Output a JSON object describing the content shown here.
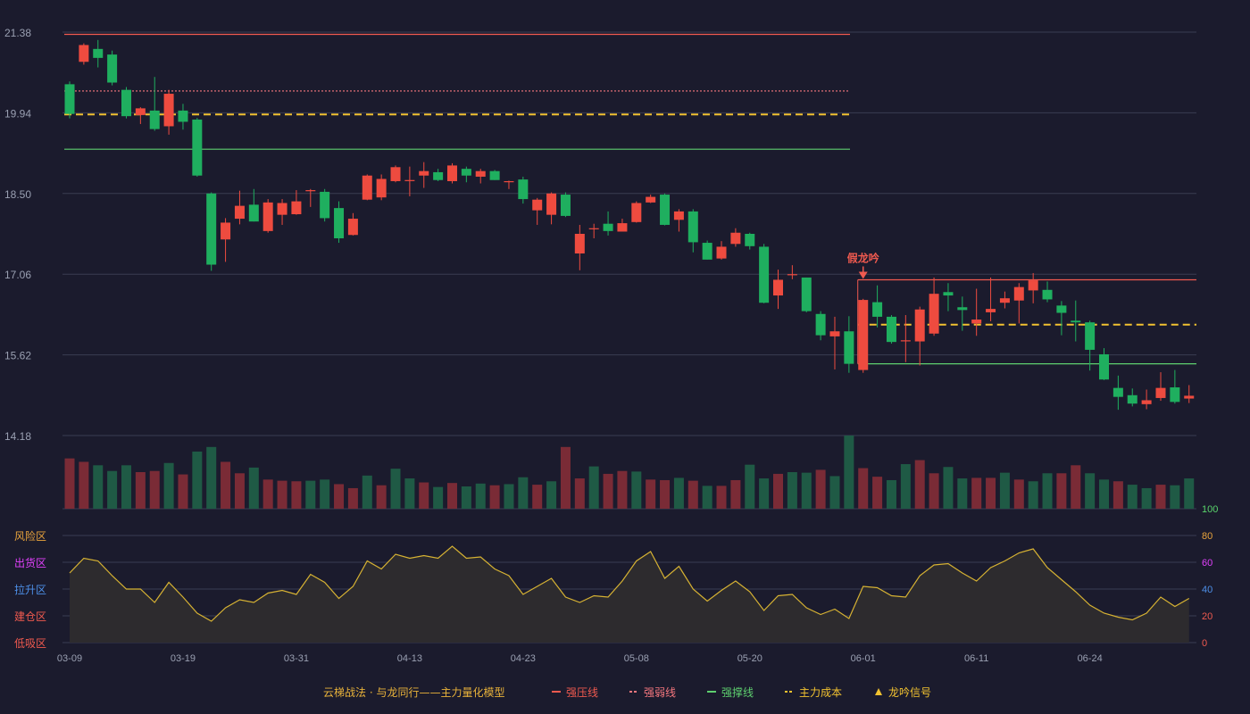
{
  "chart_data": {
    "type": "candlestick",
    "price_axis": {
      "ticks": [
        "21.38",
        "19.94",
        "18.50",
        "17.06",
        "15.62",
        "14.18"
      ],
      "ylim": [
        14.18,
        21.38
      ]
    },
    "indicator_axis": {
      "ticks": [
        "100",
        "80",
        "60",
        "40",
        "20",
        "0"
      ],
      "ylim": [
        0,
        100
      ]
    },
    "zones": [
      {
        "label": "风险区",
        "color": "#e8a33c"
      },
      {
        "label": "出货区",
        "color": "#e040fb"
      },
      {
        "label": "拉升区",
        "color": "#4d8fe8"
      },
      {
        "label": "建仓区",
        "color": "#f05a4f"
      },
      {
        "label": "低吸区",
        "color": "#f05a4f"
      }
    ],
    "x_ticks": [
      {
        "i": 0,
        "label": "03-09"
      },
      {
        "i": 8,
        "label": "03-19"
      },
      {
        "i": 16,
        "label": "03-31"
      },
      {
        "i": 24,
        "label": "04-13"
      },
      {
        "i": 32,
        "label": "04-23"
      },
      {
        "i": 40,
        "label": "05-08"
      },
      {
        "i": 48,
        "label": "05-20"
      },
      {
        "i": 56,
        "label": "06-01"
      },
      {
        "i": 64,
        "label": "06-11"
      },
      {
        "i": 72,
        "label": "06-24"
      }
    ],
    "ohlc": [
      [
        20.45,
        19.92,
        20.5,
        19.84
      ],
      [
        20.85,
        21.15,
        21.18,
        20.8
      ],
      [
        21.08,
        20.92,
        21.24,
        20.75
      ],
      [
        20.98,
        20.48,
        21.05,
        20.43
      ],
      [
        20.35,
        19.88,
        20.4,
        19.84
      ],
      [
        19.9,
        20.02,
        20.04,
        19.74
      ],
      [
        19.98,
        19.65,
        20.58,
        19.62
      ],
      [
        19.7,
        20.28,
        20.35,
        19.55
      ],
      [
        19.98,
        19.78,
        20.1,
        19.64
      ],
      [
        19.82,
        18.82,
        19.85,
        18.8
      ],
      [
        18.5,
        17.23,
        18.52,
        17.12
      ],
      [
        17.68,
        17.98,
        18.06,
        17.28
      ],
      [
        18.05,
        18.28,
        18.55,
        17.95
      ],
      [
        18.3,
        18.0,
        18.58,
        18.0
      ],
      [
        17.83,
        18.34,
        18.4,
        17.8
      ],
      [
        18.12,
        18.33,
        18.4,
        17.94
      ],
      [
        18.13,
        18.36,
        18.56,
        18.12
      ],
      [
        18.54,
        18.56,
        18.58,
        18.26
      ],
      [
        18.53,
        18.06,
        18.58,
        18.0
      ],
      [
        18.24,
        17.7,
        18.36,
        17.62
      ],
      [
        17.76,
        18.05,
        18.15,
        17.75
      ],
      [
        18.39,
        18.82,
        18.84,
        18.38
      ],
      [
        18.43,
        18.76,
        18.84,
        18.38
      ],
      [
        18.72,
        18.97,
        19.0,
        18.7
      ],
      [
        18.73,
        18.74,
        18.98,
        18.45
      ],
      [
        18.82,
        18.9,
        19.06,
        18.6
      ],
      [
        18.88,
        18.74,
        18.94,
        18.72
      ],
      [
        18.72,
        19.0,
        19.04,
        18.68
      ],
      [
        18.94,
        18.82,
        18.98,
        18.7
      ],
      [
        18.8,
        18.9,
        18.94,
        18.68
      ],
      [
        18.9,
        18.74,
        18.92,
        18.74
      ],
      [
        18.72,
        18.72,
        18.73,
        18.58
      ],
      [
        18.75,
        18.4,
        18.8,
        18.32
      ],
      [
        18.2,
        18.39,
        18.42,
        17.94
      ],
      [
        18.12,
        18.5,
        18.52,
        17.95
      ],
      [
        18.48,
        18.1,
        18.52,
        18.08
      ],
      [
        17.43,
        17.78,
        17.94,
        17.13
      ],
      [
        17.88,
        17.88,
        17.96,
        17.7
      ],
      [
        17.96,
        17.83,
        18.18,
        17.75
      ],
      [
        17.82,
        17.97,
        18.05,
        17.84
      ],
      [
        17.99,
        18.33,
        18.36,
        17.98
      ],
      [
        18.34,
        18.44,
        18.48,
        18.33
      ],
      [
        18.48,
        17.94,
        18.5,
        17.93
      ],
      [
        18.03,
        18.18,
        18.22,
        17.82
      ],
      [
        18.18,
        17.63,
        18.22,
        17.45
      ],
      [
        17.62,
        17.32,
        17.66,
        17.32
      ],
      [
        17.34,
        17.55,
        17.65,
        17.32
      ],
      [
        17.6,
        17.8,
        17.88,
        17.55
      ],
      [
        17.78,
        17.56,
        17.8,
        17.5
      ],
      [
        17.55,
        16.55,
        17.6,
        16.54
      ],
      [
        16.68,
        16.96,
        17.14,
        16.44
      ],
      [
        17.06,
        17.06,
        17.22,
        16.97
      ],
      [
        17.0,
        16.4,
        17.0,
        16.38
      ],
      [
        16.35,
        15.97,
        16.4,
        15.88
      ],
      [
        15.95,
        16.04,
        16.3,
        15.36
      ],
      [
        16.04,
        15.46,
        16.31,
        15.3
      ],
      [
        15.35,
        16.6,
        16.62,
        15.3
      ],
      [
        16.56,
        16.3,
        16.86,
        16.11
      ],
      [
        16.3,
        15.85,
        16.33,
        15.82
      ],
      [
        15.88,
        15.88,
        16.33,
        15.49
      ],
      [
        15.86,
        16.43,
        16.48,
        15.43
      ],
      [
        16.0,
        16.71,
        17.0,
        15.96
      ],
      [
        16.74,
        16.68,
        16.9,
        16.4
      ],
      [
        16.47,
        16.42,
        16.66,
        16.05
      ],
      [
        16.18,
        16.25,
        16.8,
        15.96
      ],
      [
        16.38,
        16.44,
        17.0,
        16.22
      ],
      [
        16.55,
        16.63,
        16.75,
        16.45
      ],
      [
        16.59,
        16.83,
        16.9,
        16.18
      ],
      [
        16.77,
        16.95,
        17.08,
        16.54
      ],
      [
        16.78,
        16.61,
        16.93,
        16.56
      ],
      [
        16.5,
        16.37,
        16.58,
        15.97
      ],
      [
        16.23,
        16.2,
        16.59,
        15.86
      ],
      [
        16.2,
        15.71,
        16.23,
        15.34
      ],
      [
        15.63,
        15.18,
        15.74,
        15.17
      ],
      [
        15.03,
        14.87,
        15.25,
        14.64
      ],
      [
        14.9,
        14.75,
        15.02,
        14.7
      ],
      [
        14.74,
        14.81,
        15.0,
        14.65
      ],
      [
        14.85,
        15.03,
        15.31,
        14.8
      ],
      [
        15.04,
        14.78,
        15.35,
        14.75
      ],
      [
        14.84,
        14.89,
        15.08,
        14.76
      ]
    ],
    "volume_up": [
      true,
      true,
      false,
      false,
      false,
      true,
      true,
      false,
      true,
      false,
      false,
      true,
      true,
      false,
      true,
      true,
      true,
      false,
      false,
      true,
      true,
      false,
      true,
      false,
      false,
      true,
      false,
      true,
      false,
      false,
      true,
      false,
      false,
      true,
      false,
      true,
      true,
      false,
      true,
      true,
      false,
      true,
      true,
      false,
      true,
      false,
      true,
      true,
      false,
      false,
      true,
      false,
      false,
      true,
      false,
      false,
      true,
      true,
      false,
      false,
      true,
      true,
      false,
      false,
      true,
      true,
      false,
      true,
      false,
      false,
      true,
      true,
      false,
      false,
      true,
      false,
      false,
      true,
      false,
      false
    ],
    "volume": [
      88,
      82,
      76,
      66,
      76,
      64,
      66,
      80,
      60,
      100,
      108,
      82,
      62,
      72,
      51,
      49,
      48,
      49,
      51,
      43,
      36,
      58,
      41,
      70,
      53,
      46,
      38,
      45,
      39,
      44,
      41,
      43,
      55,
      42,
      48,
      108,
      53,
      74,
      61,
      66,
      65,
      51,
      50,
      54,
      49,
      40,
      40,
      50,
      77,
      53,
      61,
      64,
      63,
      68,
      57,
      128,
      71,
      56,
      50,
      78,
      85,
      62,
      73,
      53,
      54,
      54,
      63,
      51,
      48,
      62,
      62,
      76,
      62,
      51,
      48,
      42,
      36,
      42,
      41,
      53
    ],
    "indicator": [
      52,
      63,
      61,
      50,
      40,
      40,
      30,
      45,
      34,
      22,
      16,
      26,
      32,
      30,
      37,
      39,
      36,
      51,
      45,
      33,
      42,
      61,
      55,
      66,
      63,
      65,
      63,
      72,
      63,
      64,
      55,
      50,
      36,
      42,
      48,
      34,
      30,
      35,
      34,
      46,
      61,
      68,
      48,
      57,
      40,
      31,
      39,
      46,
      38,
      24,
      35,
      36,
      26,
      21,
      25,
      18,
      42,
      41,
      35,
      34,
      50,
      58,
      59,
      52,
      46,
      56,
      61,
      67,
      70,
      56,
      47,
      38,
      28,
      22,
      19,
      17,
      22,
      34,
      27,
      33
    ],
    "lines": [
      {
        "name": "强压线",
        "value": 21.34,
        "from": 0,
        "to": 55,
        "style": "solid",
        "color": "#f05a4f"
      },
      {
        "name": "强弱线",
        "value": 20.33,
        "from": 0,
        "to": 55,
        "style": "dotted",
        "color": "#f5777e"
      },
      {
        "name": "主力成本",
        "value": 19.91,
        "from": 0,
        "to": 55,
        "style": "dashed",
        "color": "#f2c230"
      },
      {
        "name": "强撑线",
        "value": 19.29,
        "from": 0,
        "to": 55,
        "style": "solid",
        "color": "#5ed06f"
      },
      {
        "name": "强压线",
        "value": 16.96,
        "from": 56,
        "to": 79,
        "style": "solid",
        "color": "#f05a4f"
      },
      {
        "name": "主力成本",
        "value": 16.16,
        "from": 56,
        "to": 79,
        "style": "dashed",
        "color": "#f2c230"
      },
      {
        "name": "强撑线",
        "value": 15.46,
        "from": 56,
        "to": 79,
        "style": "solid",
        "color": "#5ed06f"
      }
    ],
    "signal": {
      "label": "假龙吟",
      "index": 56,
      "color": "#f05a4f"
    },
    "legend": {
      "title": "云梯战法 · 与龙同行——主力量化模型",
      "items": [
        {
          "symbol": "—",
          "label": "强压线",
          "color": "#f05a4f"
        },
        {
          "symbol": "---",
          "label": "强弱线",
          "color": "#f5777e"
        },
        {
          "symbol": "—",
          "label": "强撑线",
          "color": "#5ed06f"
        },
        {
          "symbol": "---",
          "label": "主力成本",
          "color": "#f2c230"
        },
        {
          "symbol": "▲",
          "label": "龙吟信号",
          "color": "#f2c230"
        }
      ]
    },
    "colors": {
      "up": "#ee4b3f",
      "down": "#1faf5f",
      "vol_up": "#7a2b36",
      "vol_down": "#1f5a45",
      "indicator": "#d6b233"
    }
  }
}
